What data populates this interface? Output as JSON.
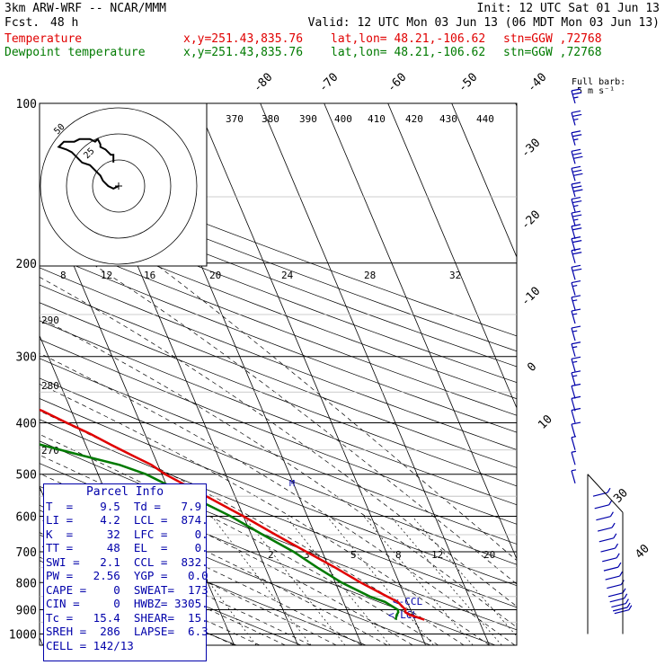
{
  "header": {
    "model": "3km ARW-WRF -- NCAR/MMM",
    "init": "Init: 12 UTC Sat 01 Jun 13",
    "fcst_label": "Fcst.",
    "fcst_value": "48 h",
    "valid": "Valid: 12 UTC Mon 03 Jun 13 (06 MDT Mon 03 Jun 13)"
  },
  "legend": [
    {
      "name": "Temperature",
      "xy": "x,y=251.43,835.76",
      "latlon": "lat,lon= 48.21,-106.62",
      "stn": "stn=GGW ,72768",
      "color": "#e00000"
    },
    {
      "name": "Dewpoint temperature",
      "xy": "x,y=251.43,835.76",
      "latlon": "lat,lon= 48.21,-106.62",
      "stn": "stn=GGW ,72768",
      "color": "#007a00"
    }
  ],
  "parcel_info": {
    "title": "Parcel Info",
    "rows": [
      "T  =    9.5  Td =   7.9",
      "LI =    4.2  LCL =  874.",
      "K  =     32  LFC =    0.",
      "TT =     48  EL  =    0.",
      "SWI =   2.1  CCL =  832.",
      "PW =   2.56  YGP =   0.0",
      "CAPE =    0  SWEAT=  173",
      "CIN =     0  HWBZ= 3305.",
      "Tc =   15.4  SHEAR=  15.",
      "SREH =  286  LAPSE=  6.3",
      "CELL = 142/13"
    ]
  },
  "chart_data": {
    "type": "line",
    "title": "Skew-T log-P sounding",
    "pressure_labels": [
      "100",
      "200",
      "300",
      "400",
      "500",
      "600",
      "700",
      "800",
      "900",
      "1000"
    ],
    "isotherm_labels_top": [
      "-80",
      "-70",
      "-60",
      "-50",
      "-40"
    ],
    "isotherm_labels_right": [
      "-30",
      "-20",
      "-10",
      "0",
      "10"
    ],
    "mixing_ratio_labels": [
      "2",
      "3",
      "5",
      "8",
      "12",
      "20"
    ],
    "theta_labels": [
      "290",
      "280",
      "270"
    ],
    "thetae_labels": [
      "370",
      "380",
      "390",
      "400",
      "410",
      "420",
      "430",
      "440"
    ],
    "hodo_labels": {
      "units": "kts",
      "speeds": [
        "8",
        "12",
        "16",
        "20",
        "24",
        "28",
        "32"
      ],
      "ring_labels": [
        "25",
        "50"
      ]
    },
    "barb_legend": {
      "title": "Full barb:",
      "value": "5 m s⁻¹"
    },
    "wind_axis_labels": [
      "30",
      "40"
    ],
    "annotations": [
      "<-CCL",
      "<-LCL",
      "M"
    ],
    "series": [
      {
        "name": "Temperature",
        "color": "#e00000",
        "pressure": [
          940,
          920,
          910,
          900,
          870,
          850,
          800,
          750,
          700,
          650,
          600,
          550,
          500,
          480,
          460,
          440,
          420,
          400,
          380,
          360,
          340,
          320,
          300,
          280,
          260,
          240,
          220,
          200,
          180,
          160,
          150,
          140,
          120,
          100
        ],
        "temperature": [
          11.5,
          9.5,
          9.0,
          9.2,
          8.5,
          7.2,
          4.0,
          1.0,
          -2.5,
          -6.2,
          -10.0,
          -14.5,
          -19.5,
          -21.0,
          -23.5,
          -26.0,
          -28.5,
          -31.5,
          -34.5,
          -38.5,
          -42.0,
          -46.0,
          -49.5,
          -51.5,
          -52.0,
          -52.5,
          -53.5,
          -54.0,
          -53.0,
          -51.5,
          -50.5,
          -50.0,
          -46.5,
          -42.0
        ]
      },
      {
        "name": "Dewpoint temperature",
        "color": "#007a00",
        "pressure": [
          940,
          920,
          910,
          900,
          870,
          850,
          800,
          750,
          700,
          650,
          600,
          550,
          500,
          480,
          460,
          440,
          420,
          400,
          380,
          360,
          340,
          320,
          300,
          280,
          260,
          240,
          220,
          200,
          180,
          160,
          150,
          140,
          120,
          100
        ],
        "dewpoint": [
          7.0,
          7.5,
          7.9,
          8.0,
          6.5,
          4.5,
          1.0,
          -1.8,
          -4.5,
          -8.2,
          -12.0,
          -17.0,
          -22.5,
          -26.0,
          -31.5,
          -37.0,
          -40.5,
          -41.0,
          -44.5,
          -47.5,
          -52.0,
          -56.0,
          -59.5,
          -65.0,
          -72.0,
          -77.0,
          -80.0,
          -80.5,
          -81.5,
          -84.5,
          -85.5,
          -86.0,
          -87.5,
          -87.0
        ]
      }
    ],
    "wind_barbs": [
      {
        "p": 100,
        "spd": 25
      },
      {
        "p": 110,
        "spd": 25
      },
      {
        "p": 120,
        "spd": 25
      },
      {
        "p": 130,
        "spd": 30
      },
      {
        "p": 140,
        "spd": 30
      },
      {
        "p": 150,
        "spd": 30
      },
      {
        "p": 160,
        "spd": 25
      },
      {
        "p": 170,
        "spd": 25
      },
      {
        "p": 180,
        "spd": 20
      },
      {
        "p": 190,
        "spd": 20
      },
      {
        "p": 200,
        "spd": 20
      },
      {
        "p": 215,
        "spd": 20
      },
      {
        "p": 230,
        "spd": 15
      },
      {
        "p": 245,
        "spd": 15
      },
      {
        "p": 260,
        "spd": 15
      },
      {
        "p": 280,
        "spd": 15
      },
      {
        "p": 300,
        "spd": 15
      },
      {
        "p": 320,
        "spd": 15
      },
      {
        "p": 340,
        "spd": 15
      },
      {
        "p": 360,
        "spd": 10
      },
      {
        "p": 380,
        "spd": 10
      },
      {
        "p": 400,
        "spd": 10
      },
      {
        "p": 425,
        "spd": 10
      },
      {
        "p": 450,
        "spd": 5
      },
      {
        "p": 480,
        "spd": 5
      },
      {
        "p": 520,
        "spd": 5
      }
    ],
    "hodograph": {
      "u": [
        0,
        2,
        4,
        6,
        7,
        9,
        11,
        14,
        16,
        18,
        20,
        23,
        21,
        19,
        17,
        15,
        13,
        11,
        9,
        8,
        7,
        7,
        5,
        3,
        2,
        2
      ],
      "v": [
        0,
        -1,
        0,
        2,
        4,
        6,
        8,
        9,
        11,
        13,
        14,
        15,
        17,
        17,
        17,
        18,
        18,
        18,
        17,
        18,
        16,
        15,
        14,
        12,
        12,
        9
      ]
    }
  }
}
